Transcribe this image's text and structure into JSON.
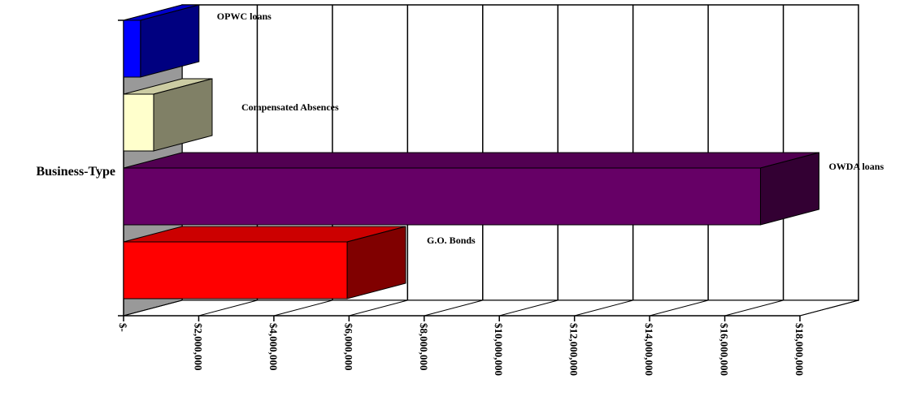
{
  "chart_data": {
    "type": "bar",
    "orientation": "horizontal",
    "style": "3d",
    "category_label": "Business-Type",
    "xlim": [
      0,
      18000000
    ],
    "x_ticks": [
      0,
      2000000,
      4000000,
      6000000,
      8000000,
      10000000,
      12000000,
      14000000,
      16000000,
      18000000
    ],
    "x_tick_labels": [
      "$-",
      "$2,000,000",
      "$4,000,000",
      "$6,000,000",
      "$8,000,000",
      "$10,000,000",
      "$12,000,000",
      "$14,000,000",
      "$16,000,000",
      "$18,000,000"
    ],
    "grid": true,
    "series": [
      {
        "name": "G.O. Bonds",
        "values": [
          5950000
        ],
        "color": "#ff0000"
      },
      {
        "name": "OWDA loans",
        "values": [
          16950000
        ],
        "color": "#660066"
      },
      {
        "name": "Compensated Absences",
        "values": [
          800000
        ],
        "color": "#ffffcc"
      },
      {
        "name": "OPWC loans",
        "values": [
          450000
        ],
        "color": "#0000ff"
      }
    ]
  }
}
